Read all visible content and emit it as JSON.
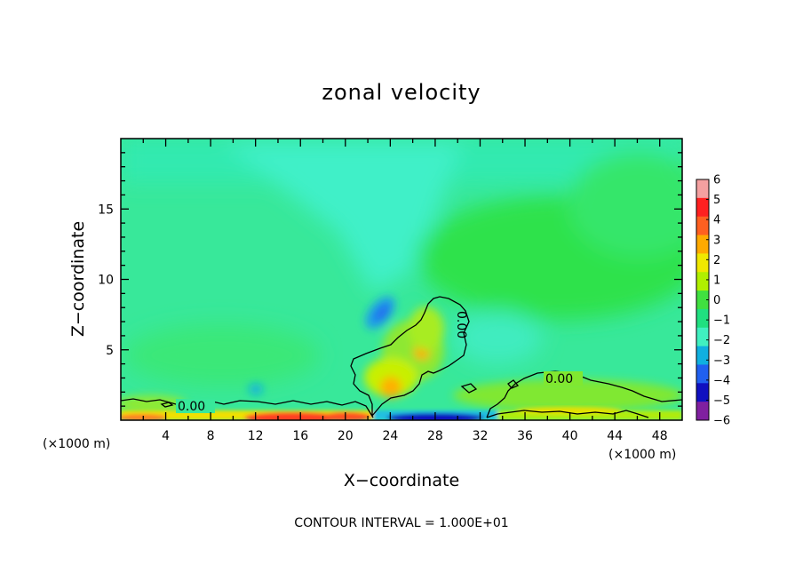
{
  "chart_data": {
    "type": "heatmap",
    "title": "zonal velocity",
    "xlabel": "X−coordinate",
    "ylabel": "Z−coordinate",
    "x_unit_left": "(×1000 m)",
    "x_unit_right": "(×1000 m)",
    "xlim": [
      0,
      50
    ],
    "ylim": [
      0,
      20
    ],
    "x_ticks": [
      4,
      8,
      12,
      16,
      20,
      24,
      28,
      32,
      36,
      40,
      44,
      48
    ],
    "y_ticks": [
      5,
      10,
      15
    ],
    "colorbar": {
      "ticks": [
        "6",
        "5",
        "4",
        "3",
        "2",
        "1",
        "0",
        "−1",
        "−2",
        "−3",
        "−4",
        "−5",
        "−6"
      ],
      "range": [
        -6,
        6
      ],
      "colors": [
        "#f4a0a0",
        "#ff2020",
        "#ff6020",
        "#ffaa00",
        "#f0e800",
        "#b0f000",
        "#40e040",
        "#20e080",
        "#40f0c0",
        "#10b0e0",
        "#2060f0",
        "#1010c0",
        "#8020a0"
      ]
    },
    "contour_labels": [
      "0.00",
      "0.00",
      "0.00"
    ],
    "footnote": "CONTOUR INTERVAL = 1.000E+01"
  }
}
